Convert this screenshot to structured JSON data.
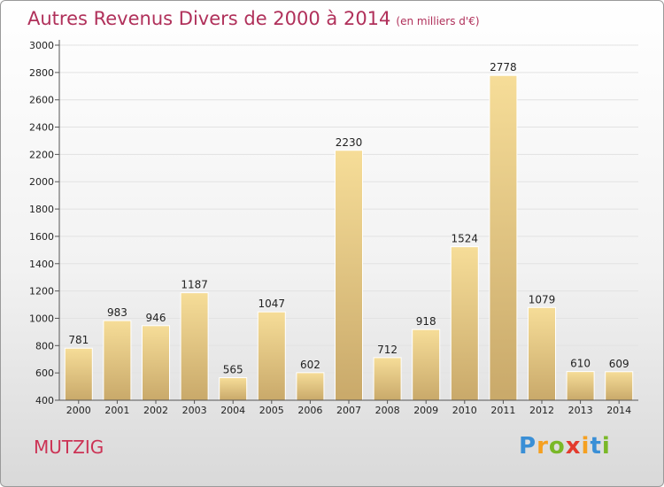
{
  "title": "Autres Revenus Divers de 2000 à 2014",
  "subtitle": "(en milliers d'€)",
  "city": "MUTZIG",
  "logo": {
    "letters": [
      "P",
      "r",
      "o",
      "x",
      "i",
      "t",
      "i"
    ],
    "colors": [
      "#3a8fd6",
      "#f5a020",
      "#7ab828",
      "#e33b2e",
      "#f5a020",
      "#3a8fd6",
      "#7ab828"
    ]
  },
  "colors": {
    "bar_top": "#f6dd98",
    "bar_bottom": "#c9a96a",
    "title": "#b0305a"
  },
  "chart_data": {
    "type": "bar",
    "categories": [
      "2000",
      "2001",
      "2002",
      "2003",
      "2004",
      "2005",
      "2006",
      "2007",
      "2008",
      "2009",
      "2010",
      "2011",
      "2012",
      "2013",
      "2014"
    ],
    "values": [
      781,
      983,
      946,
      1187,
      565,
      1047,
      602,
      2230,
      712,
      918,
      1524,
      2778,
      1079,
      610,
      609
    ],
    "ylim": [
      400,
      3000
    ],
    "yticks": [
      400,
      600,
      800,
      1000,
      1200,
      1400,
      1600,
      1800,
      2000,
      2200,
      2400,
      2600,
      2800,
      3000
    ],
    "grid": true
  }
}
